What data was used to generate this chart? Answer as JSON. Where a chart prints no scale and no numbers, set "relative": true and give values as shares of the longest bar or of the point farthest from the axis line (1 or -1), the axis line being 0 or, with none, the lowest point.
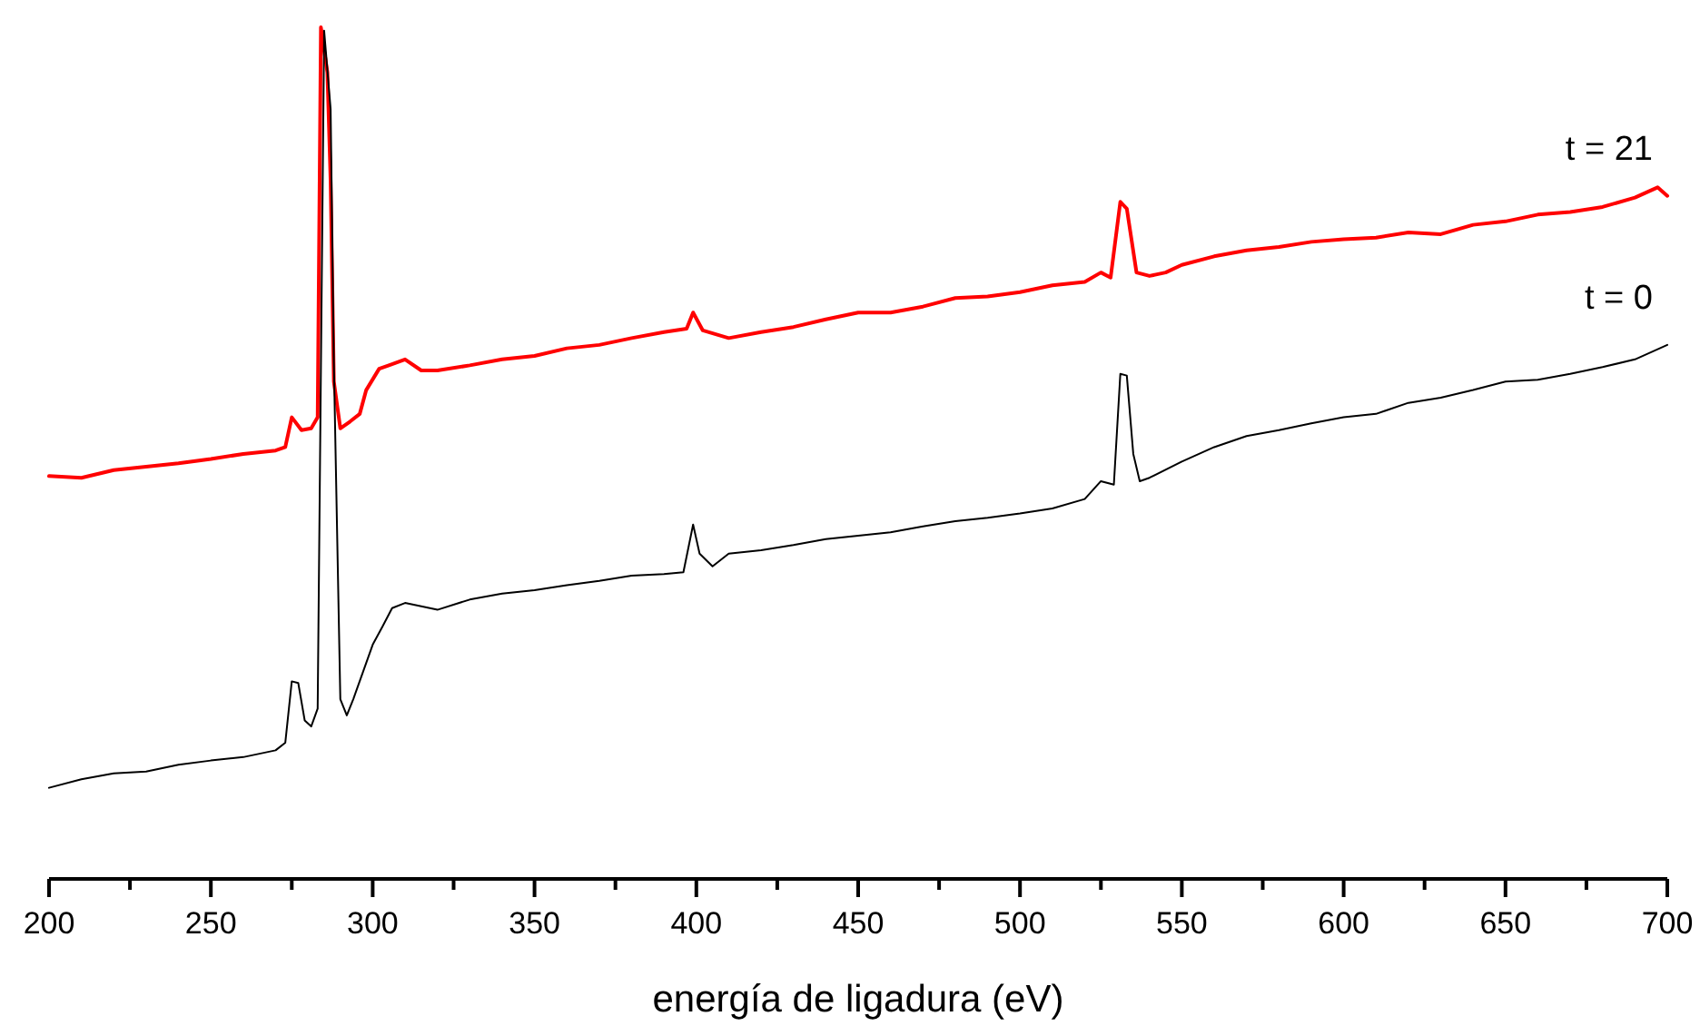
{
  "chart_data": {
    "type": "line",
    "relative": true,
    "xlabel": "energía de ligadura (eV)",
    "xlim": [
      200,
      700
    ],
    "xticks": [
      200,
      {
        "value": 225,
        "label": null
      },
      250,
      {
        "value": 275,
        "label": null
      },
      300,
      {
        "value": 325,
        "label": null
      },
      350,
      {
        "value": 375,
        "label": null
      },
      400,
      {
        "value": 425,
        "label": null
      },
      450,
      {
        "value": 475,
        "label": null
      },
      500,
      {
        "value": 525,
        "label": null
      },
      550,
      {
        "value": 575,
        "label": null
      },
      600,
      {
        "value": 625,
        "label": null
      },
      650,
      {
        "value": 675,
        "label": null
      },
      700
    ],
    "grid": false,
    "marker": "none",
    "line_style": "solid",
    "series": [
      {
        "name": "t = 21",
        "color": "#ff0000",
        "x": [
          200,
          210,
          220,
          230,
          240,
          250,
          260,
          270,
          273,
          275,
          278,
          281,
          283,
          284,
          286,
          287,
          288,
          290,
          293,
          296,
          298,
          302,
          305,
          310,
          315,
          320,
          330,
          340,
          350,
          360,
          370,
          380,
          390,
          397,
          399,
          402,
          410,
          420,
          430,
          440,
          450,
          460,
          470,
          480,
          490,
          500,
          510,
          520,
          525,
          528,
          531,
          533,
          536,
          540,
          545,
          550,
          560,
          570,
          580,
          590,
          600,
          610,
          620,
          630,
          640,
          650,
          660,
          670,
          680,
          690,
          697,
          700
        ],
        "values": [
          0.473,
          0.471,
          0.48,
          0.484,
          0.488,
          0.493,
          0.499,
          0.503,
          0.507,
          0.542,
          0.527,
          0.529,
          0.542,
          1,
          0.947,
          0.819,
          0.584,
          0.529,
          0.537,
          0.546,
          0.574,
          0.599,
          0.603,
          0.61,
          0.597,
          0.597,
          0.603,
          0.61,
          0.614,
          0.623,
          0.627,
          0.635,
          0.642,
          0.646,
          0.665,
          0.644,
          0.635,
          0.642,
          0.648,
          0.657,
          0.665,
          0.665,
          0.672,
          0.682,
          0.684,
          0.689,
          0.697,
          0.701,
          0.712,
          0.706,
          0.795,
          0.787,
          0.712,
          0.708,
          0.712,
          0.721,
          0.731,
          0.738,
          0.742,
          0.748,
          0.751,
          0.753,
          0.759,
          0.757,
          0.768,
          0.772,
          0.78,
          0.783,
          0.789,
          0.8,
          0.812,
          0.802
        ]
      },
      {
        "name": "t = 0",
        "color": "#000000",
        "x": [
          200,
          210,
          220,
          230,
          240,
          250,
          260,
          270,
          273,
          275,
          277,
          279,
          281,
          283,
          285,
          287,
          288,
          290,
          292,
          294,
          297,
          300,
          303,
          306,
          310,
          320,
          330,
          340,
          350,
          360,
          370,
          380,
          390,
          396,
          399,
          401,
          405,
          410,
          420,
          430,
          440,
          450,
          460,
          470,
          480,
          490,
          500,
          510,
          520,
          525,
          529,
          531,
          533,
          535,
          537,
          540,
          550,
          560,
          570,
          580,
          590,
          600,
          610,
          620,
          630,
          640,
          650,
          660,
          670,
          680,
          690,
          700
        ],
        "values": [
          0.107,
          0.117,
          0.124,
          0.126,
          0.134,
          0.139,
          0.143,
          0.151,
          0.16,
          0.232,
          0.23,
          0.186,
          0.179,
          0.2,
          0.996,
          0.904,
          0.606,
          0.211,
          0.192,
          0.211,
          0.243,
          0.275,
          0.296,
          0.318,
          0.324,
          0.316,
          0.328,
          0.335,
          0.339,
          0.345,
          0.35,
          0.356,
          0.358,
          0.36,
          0.416,
          0.382,
          0.367,
          0.382,
          0.386,
          0.392,
          0.399,
          0.403,
          0.407,
          0.414,
          0.42,
          0.424,
          0.429,
          0.435,
          0.446,
          0.467,
          0.463,
          0.593,
          0.591,
          0.499,
          0.467,
          0.471,
          0.49,
          0.507,
          0.52,
          0.527,
          0.535,
          0.542,
          0.546,
          0.559,
          0.565,
          0.574,
          0.584,
          0.586,
          0.593,
          0.601,
          0.61,
          0.627
        ]
      }
    ]
  }
}
